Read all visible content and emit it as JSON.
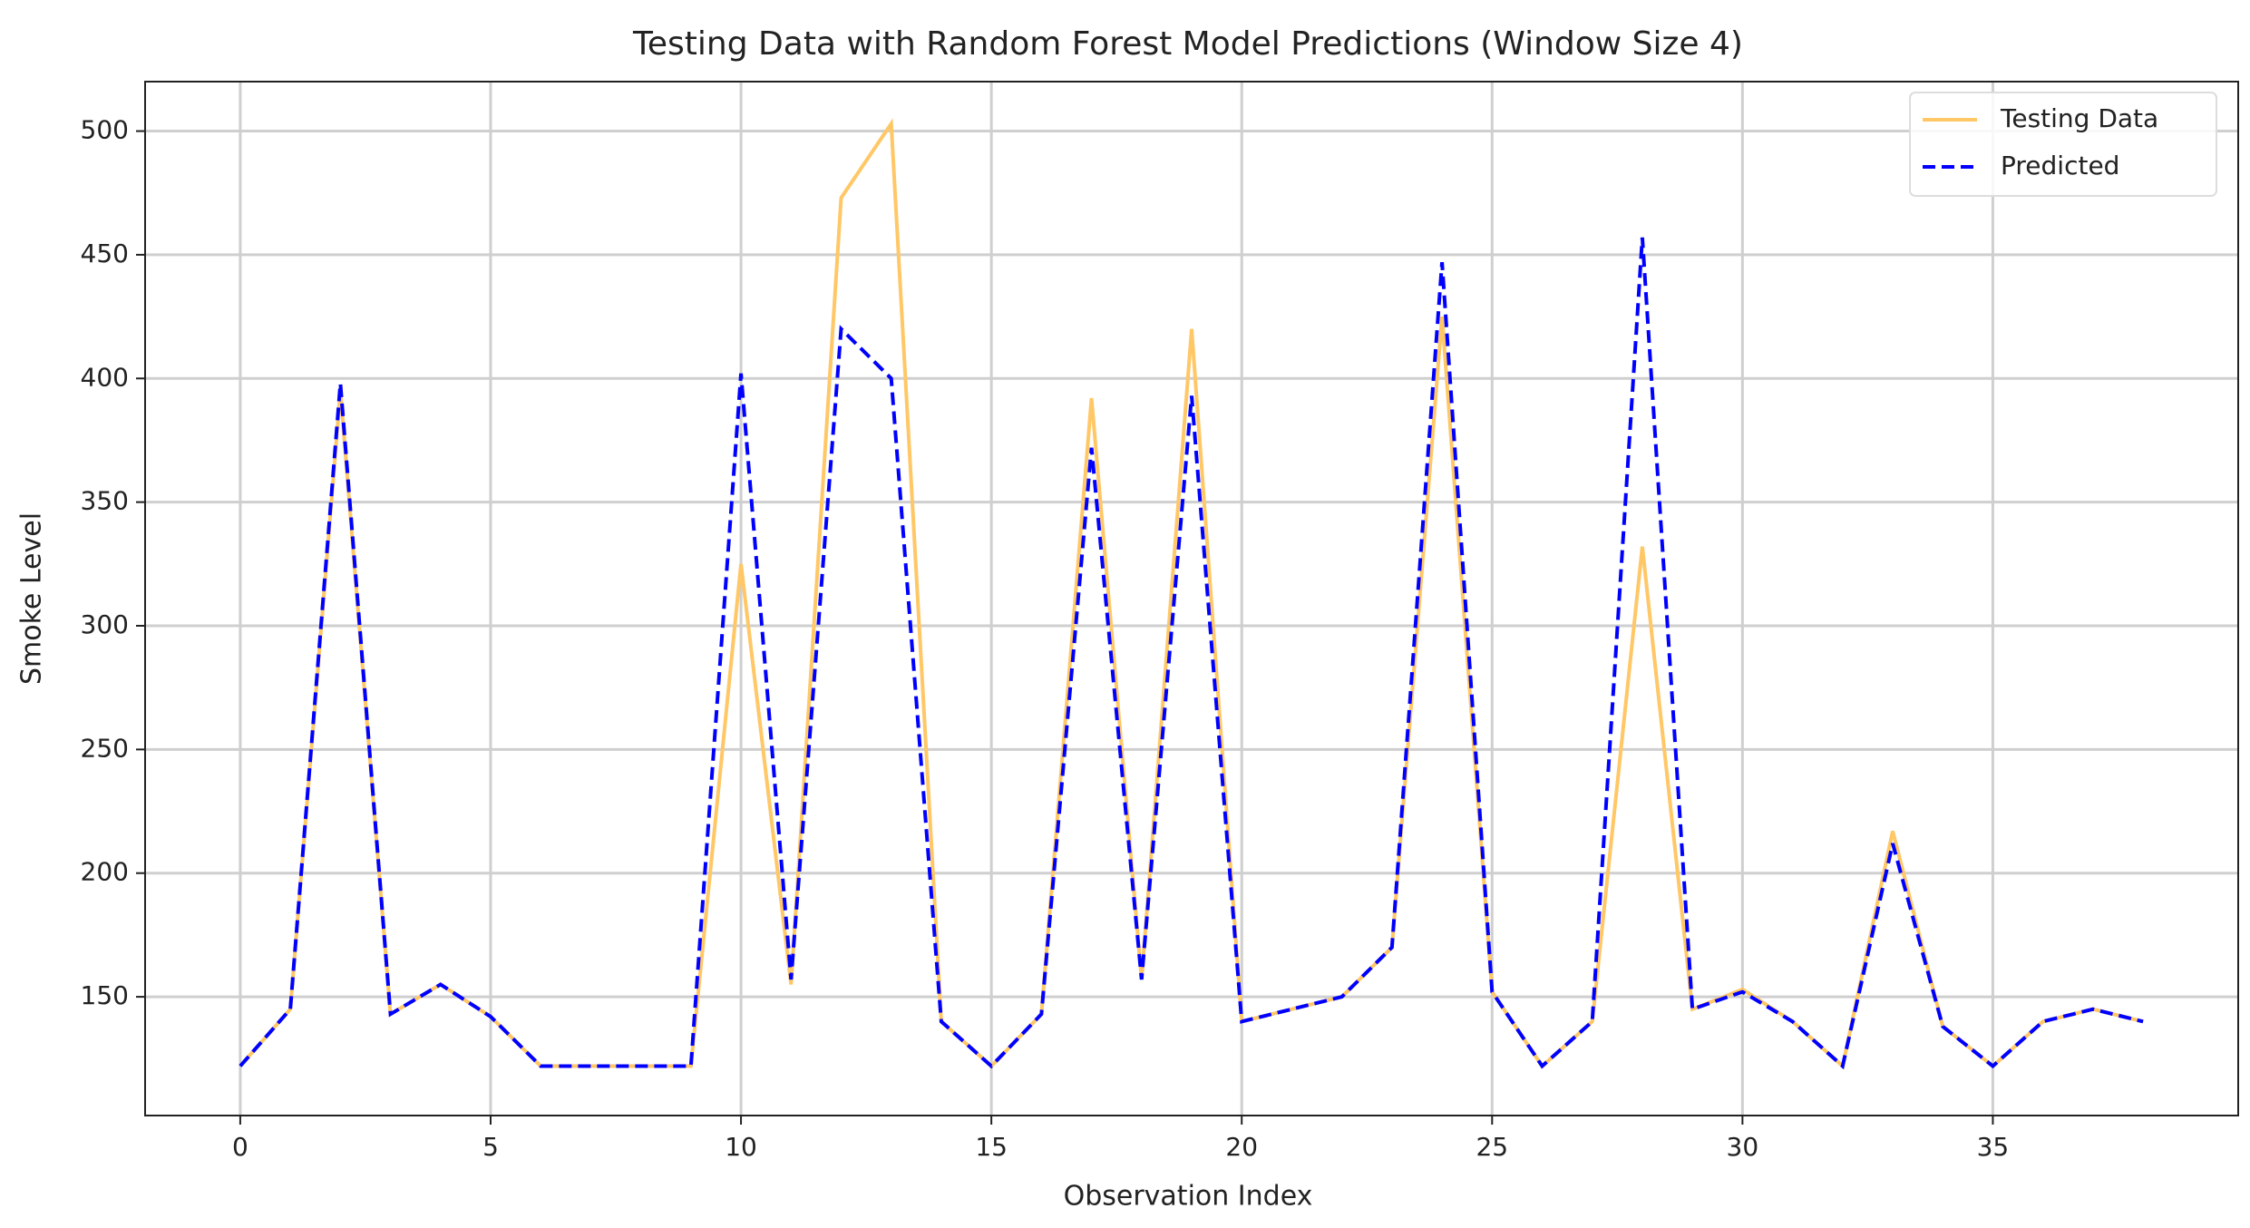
{
  "chart_data": {
    "type": "line",
    "title": "Testing Data with Random Forest Model Predictions (Window Size 4)",
    "x_label": "Observation Index",
    "y_label": "Smoke Level",
    "x": [
      0,
      1,
      2,
      3,
      4,
      5,
      6,
      7,
      8,
      9,
      10,
      11,
      12,
      13,
      14,
      15,
      16,
      17,
      18,
      19,
      20,
      21,
      22,
      23,
      24,
      25,
      26,
      27,
      28,
      29,
      30,
      31,
      32,
      33,
      34,
      35,
      36,
      37,
      38
    ],
    "series": [
      {
        "name": "Testing Data",
        "color": "#ffc766",
        "linestyle": "solid",
        "values": [
          122,
          145,
          395,
          143,
          155,
          142,
          122,
          122,
          122,
          122,
          325,
          155,
          473,
          503,
          140,
          122,
          143,
          392,
          157,
          420,
          140,
          145,
          150,
          170,
          425,
          152,
          122,
          140,
          332,
          145,
          153,
          140,
          122,
          217,
          138,
          122,
          140,
          145,
          140
        ]
      },
      {
        "name": "Predicted",
        "color": "#0000ff",
        "linestyle": "dashed",
        "values": [
          122,
          145,
          398,
          143,
          155,
          142,
          122,
          122,
          122,
          122,
          402,
          157,
          420,
          400,
          140,
          122,
          143,
          372,
          157,
          393,
          140,
          145,
          150,
          170,
          447,
          152,
          122,
          140,
          457,
          145,
          152,
          140,
          122,
          212,
          138,
          122,
          140,
          145,
          140
        ]
      }
    ],
    "xlim": [
      -1.9,
      39.9
    ],
    "ylim": [
      102,
      520
    ],
    "xticks": [
      0,
      5,
      10,
      15,
      20,
      25,
      30,
      35
    ],
    "yticks": [
      150,
      200,
      250,
      300,
      350,
      400,
      450,
      500
    ],
    "grid": true,
    "legend": "upper right"
  }
}
